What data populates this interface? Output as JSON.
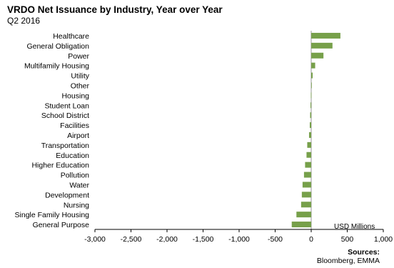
{
  "header": {
    "title": "VRDO Net Issuance by Industry, Year over Year",
    "subtitle": "Q2 2016"
  },
  "footer": {
    "sources_label": "Sources:",
    "sources_text": "Bloomberg, EMMA"
  },
  "chart_data": {
    "type": "bar",
    "orientation": "horizontal",
    "title": "VRDO Net Issuance by Industry, Year over Year",
    "subtitle": "Q2 2016",
    "xlabel": "USD Millions",
    "ylabel": "",
    "xlim": [
      -3000,
      1000
    ],
    "xticks": [
      -3000,
      -2500,
      -2000,
      -1500,
      -1000,
      -500,
      0,
      500,
      1000
    ],
    "xtick_labels": [
      "-3,000",
      "-2,500",
      "-2,000",
      "-1,500",
      "-1,000",
      "-500",
      "0",
      "500",
      "1,000"
    ],
    "grid": false,
    "legend": "none",
    "bar_color": "#77a04a",
    "categories": [
      "Healthcare",
      "General Obligation",
      "Power",
      "Multifamily Housing",
      "Utility",
      "Other",
      "Housing",
      "Student Loan",
      "School District",
      "Facilities",
      "Airport",
      "Transportation",
      "Education",
      "Higher Education",
      "Pollution",
      "Water",
      "Development",
      "Nursing",
      "Single Family Housing",
      "General Purpose"
    ],
    "values": [
      405,
      295,
      170,
      55,
      20,
      0,
      -5,
      -10,
      -15,
      -20,
      -30,
      -55,
      -65,
      -85,
      -100,
      -120,
      -130,
      -140,
      -205,
      -270
    ]
  }
}
